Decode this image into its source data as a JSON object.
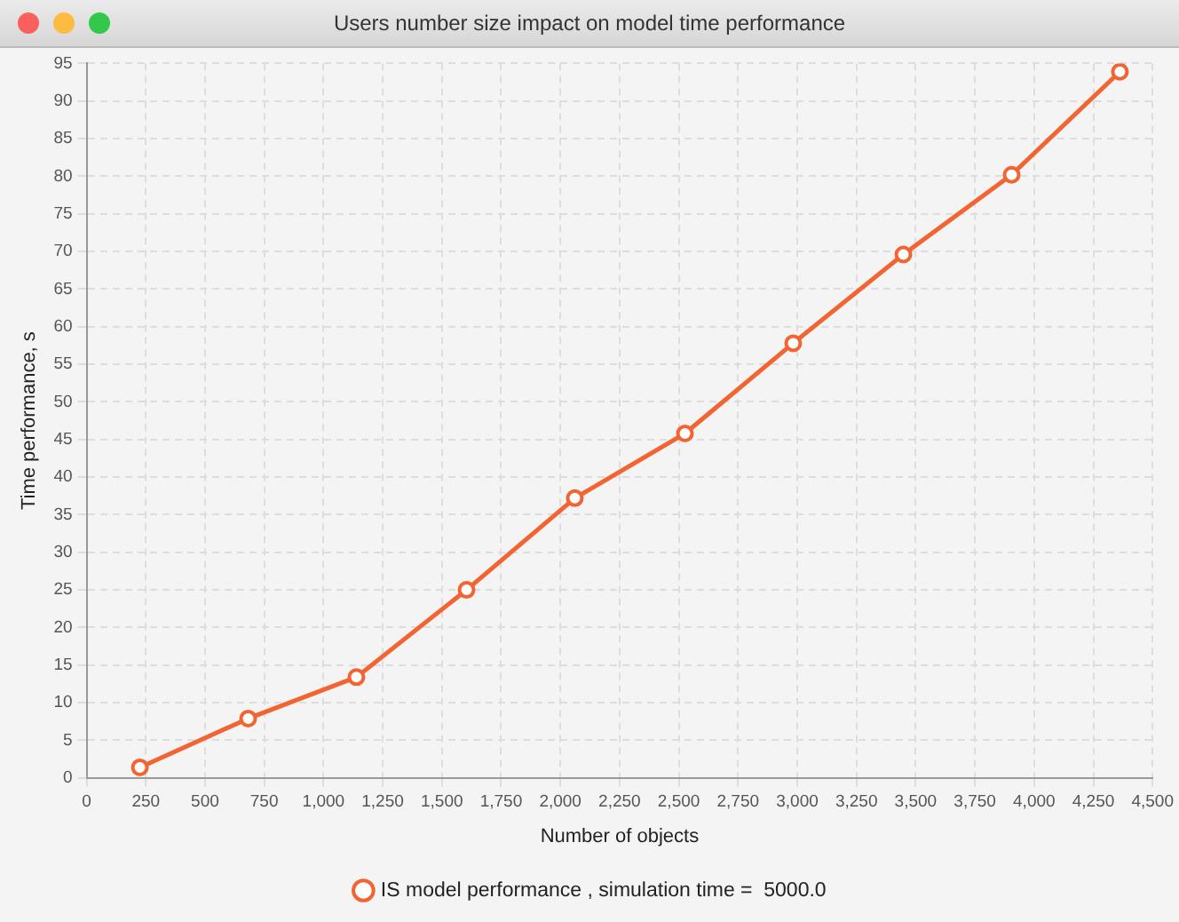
{
  "chart_data": {
    "type": "line",
    "title": "Users number size impact on model time performance",
    "xlabel": "Number of objects",
    "ylabel": "Time performance, s",
    "x": [
      225,
      682,
      1139,
      1604,
      2061,
      2526,
      2983,
      3448,
      3905,
      4362
    ],
    "series": [
      {
        "name": "IS model performance , simulation time =  5000.0",
        "color": "#f26431",
        "values": [
          1.4,
          7.9,
          13.4,
          25,
          37.2,
          45.8,
          57.8,
          69.6,
          80.2,
          93.9
        ]
      }
    ],
    "xlim": [
      0,
      4500
    ],
    "xticks": [
      0,
      250,
      500,
      750,
      {
        "value": 1000,
        "label": "1,000"
      },
      {
        "value": 1250,
        "label": "1,250"
      },
      {
        "value": 1500,
        "label": "1,500"
      },
      {
        "value": 1750,
        "label": "1,750"
      },
      {
        "value": 2000,
        "label": "2,000"
      },
      {
        "value": 2250,
        "label": "2,250"
      },
      {
        "value": 2500,
        "label": "2,500"
      },
      {
        "value": 2750,
        "label": "2,750"
      },
      {
        "value": 3000,
        "label": "3,000"
      },
      {
        "value": 3250,
        "label": "3,250"
      },
      {
        "value": 3500,
        "label": "3,500"
      },
      {
        "value": 3750,
        "label": "3,750"
      },
      {
        "value": 4000,
        "label": "4,000"
      },
      {
        "value": 4250,
        "label": "4,250"
      },
      {
        "value": 4500,
        "label": "4,500"
      }
    ],
    "ylim": [
      0,
      95
    ],
    "yticks": [
      0,
      5,
      10,
      15,
      20,
      25,
      30,
      35,
      40,
      45,
      50,
      55,
      60,
      65,
      70,
      75,
      80,
      85,
      90,
      95
    ],
    "grid": true,
    "legend": "bottom",
    "marker": "circle",
    "line_style": "solid"
  }
}
